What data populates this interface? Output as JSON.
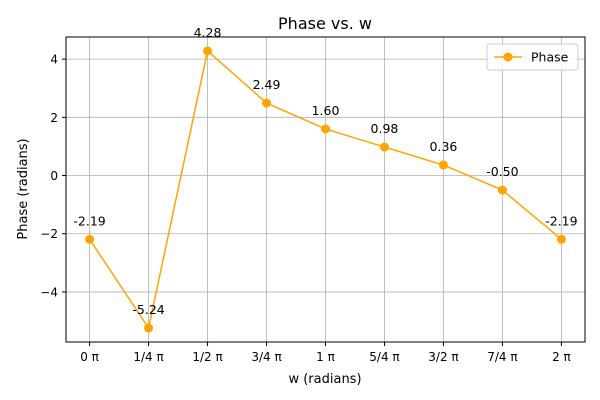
{
  "chart_data": {
    "type": "line",
    "title": "Phase vs. w",
    "xlabel": "w (radians)",
    "ylabel": "Phase (radians)",
    "categories": [
      "0 π",
      "1/4 π",
      "1/2 π",
      "3/4 π",
      "1 π",
      "5/4 π",
      "3/2 π",
      "7/4 π",
      "2 π"
    ],
    "x": [
      0,
      0.25,
      0.5,
      0.75,
      1.0,
      1.25,
      1.5,
      1.75,
      2.0
    ],
    "series": [
      {
        "name": "Phase",
        "values": [
          -2.19,
          -5.24,
          4.28,
          2.49,
          1.6,
          0.98,
          0.36,
          -0.5,
          -2.19
        ],
        "data_labels": [
          "-2.19",
          "-5.24",
          "4.28",
          "2.49",
          "1.60",
          "0.98",
          "0.36",
          "-0.50",
          "-2.19"
        ],
        "color": "#ffa500"
      }
    ],
    "yticks": [
      -4,
      -2,
      0,
      2,
      4
    ],
    "ytick_labels": [
      "−4",
      "−2",
      "0",
      "2",
      "4"
    ],
    "ylim": [
      -5.72,
      4.76
    ],
    "xlim": [
      -0.1,
      2.1
    ],
    "grid": true,
    "legend_position": "top-right"
  }
}
